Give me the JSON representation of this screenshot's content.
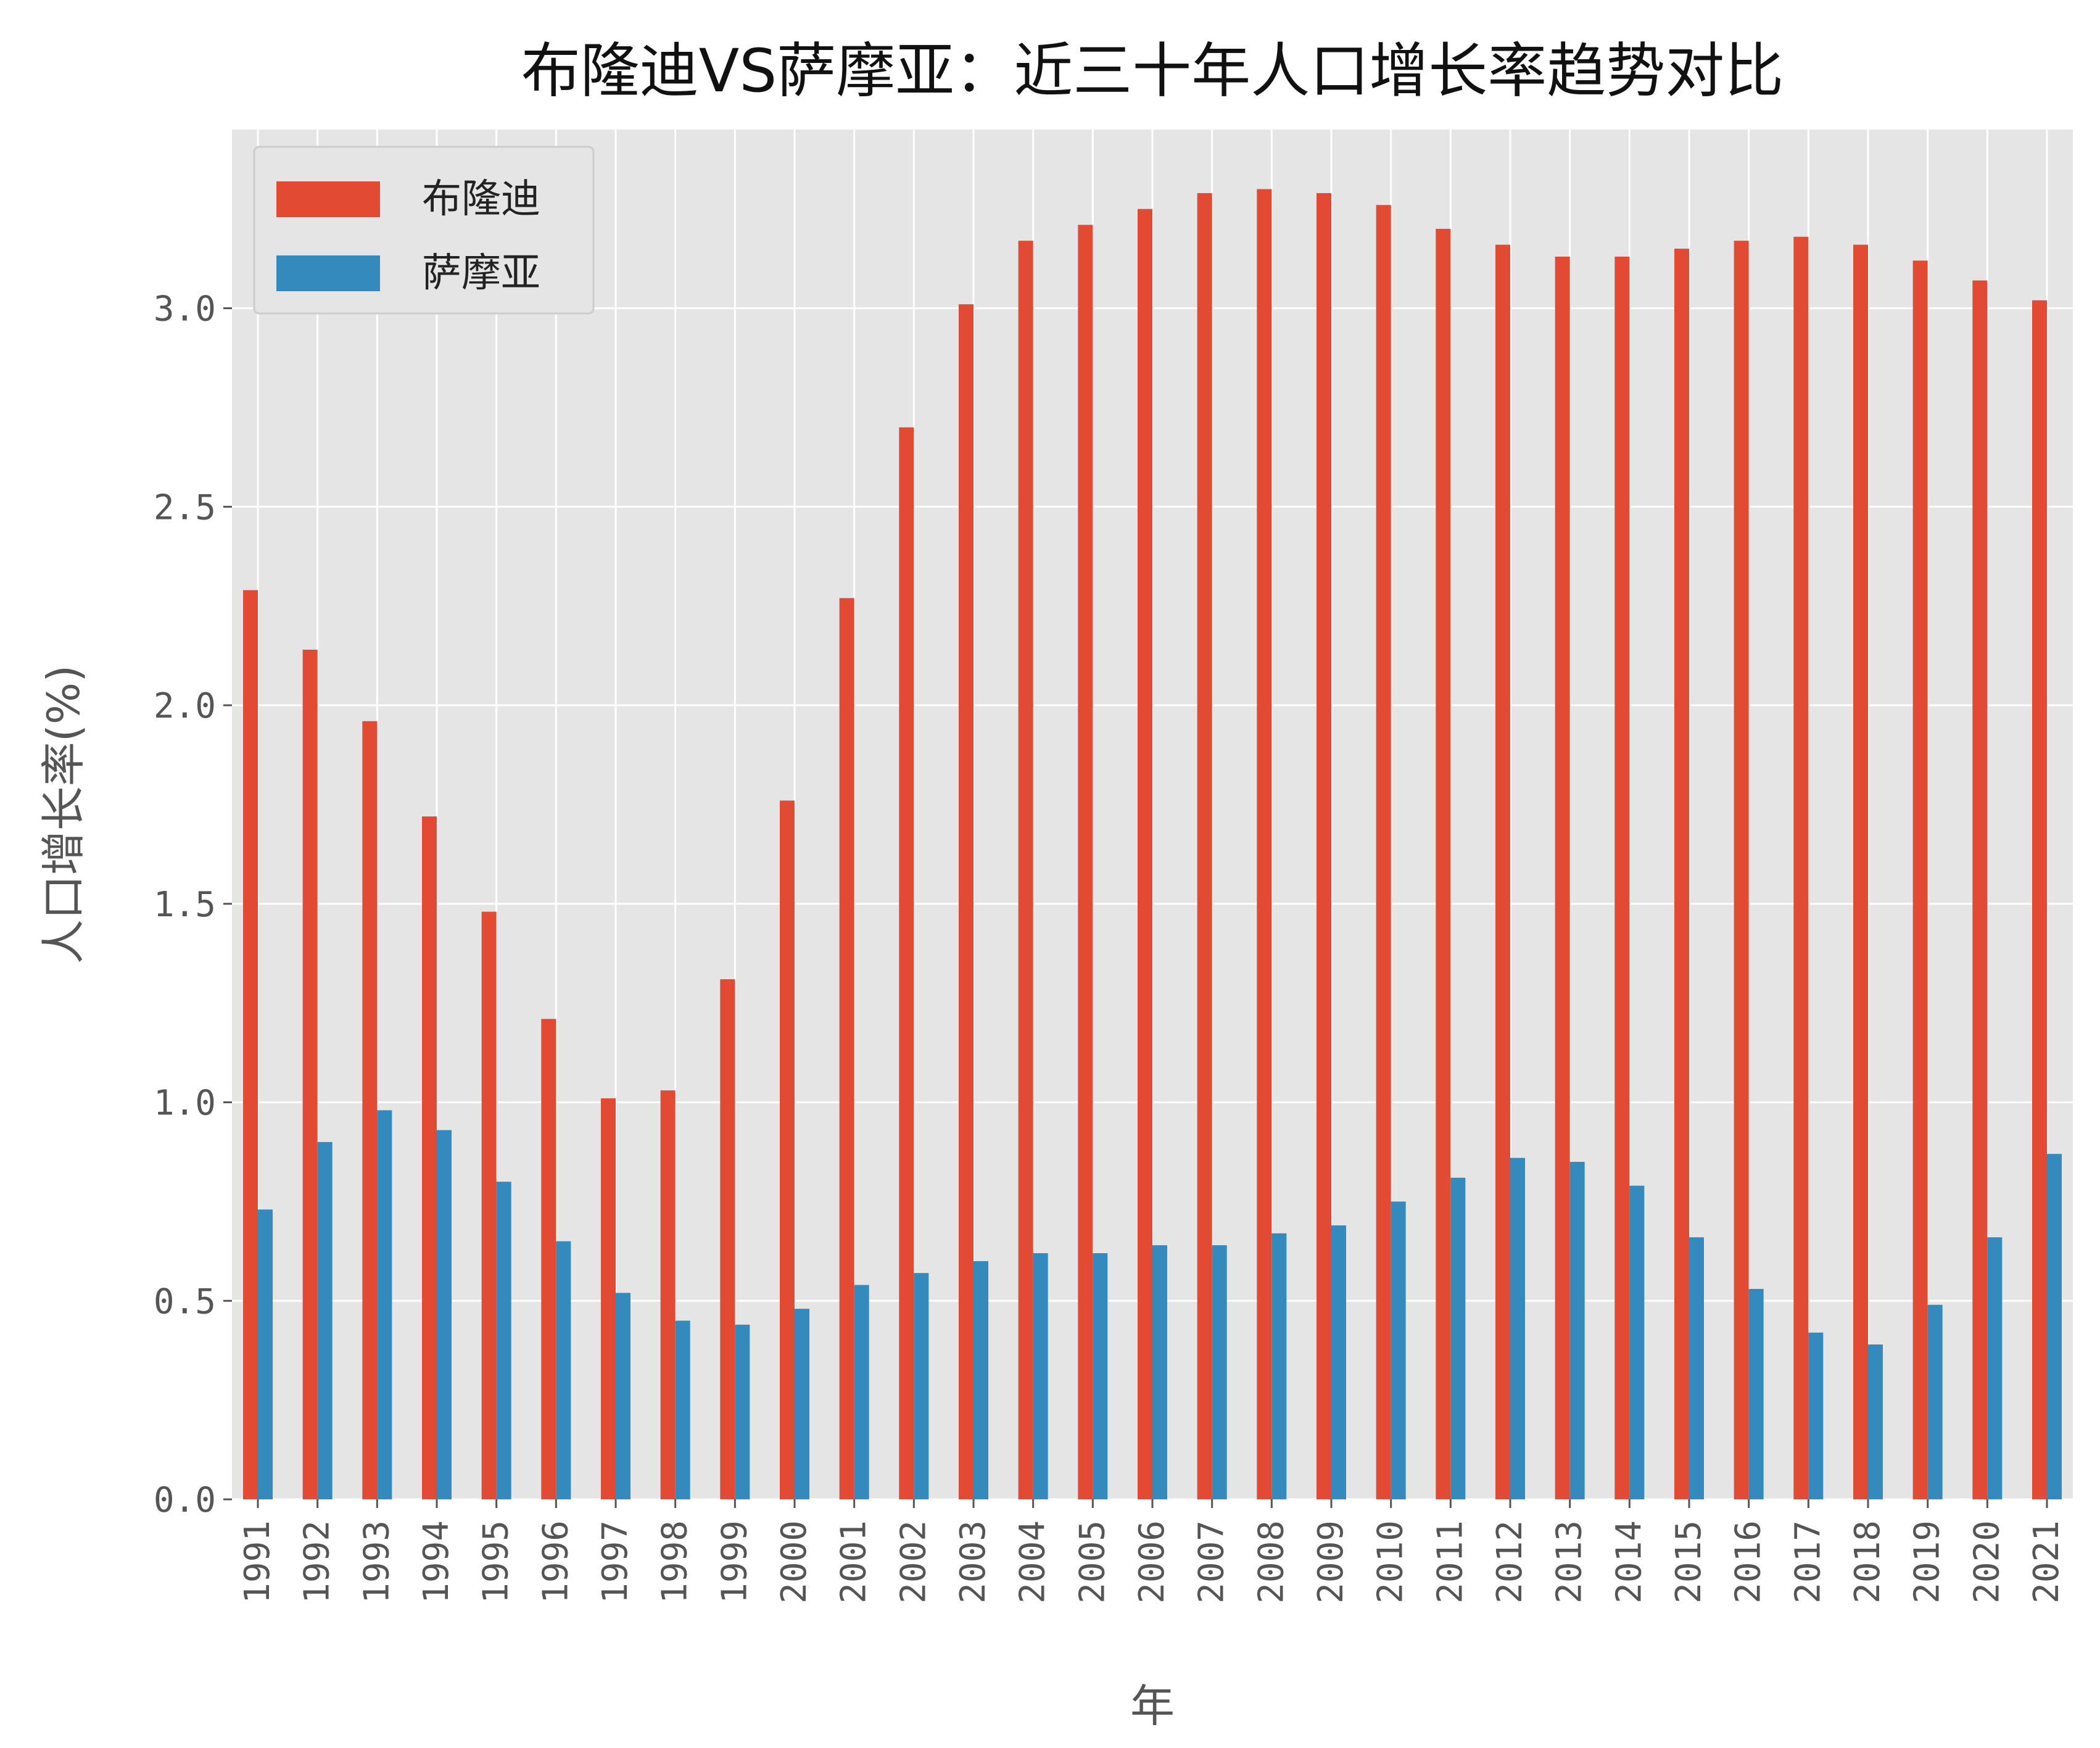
{
  "chart_data": {
    "type": "bar",
    "title": "布隆迪VS萨摩亚：近三十年人口增长率趋势对比",
    "xlabel": "年",
    "ylabel": "人口增长率(%)",
    "ylim": [
      0,
      3.45
    ],
    "yticks": [
      "0.0",
      "0.5",
      "1.0",
      "1.5",
      "2.0",
      "2.5",
      "3.0"
    ],
    "grid": true,
    "legend_position": "top-left",
    "categories": [
      "1991",
      "1992",
      "1993",
      "1994",
      "1995",
      "1996",
      "1997",
      "1998",
      "1999",
      "2000",
      "2001",
      "2002",
      "2003",
      "2004",
      "2005",
      "2006",
      "2007",
      "2008",
      "2009",
      "2010",
      "2011",
      "2012",
      "2013",
      "2014",
      "2015",
      "2016",
      "2017",
      "2018",
      "2019",
      "2020",
      "2021"
    ],
    "series": [
      {
        "name": "布隆迪",
        "color": "#E24A33",
        "values": [
          2.29,
          2.14,
          1.96,
          1.72,
          1.48,
          1.21,
          1.01,
          1.03,
          1.31,
          1.76,
          2.27,
          2.7,
          3.01,
          3.17,
          3.21,
          3.25,
          3.29,
          3.3,
          3.29,
          3.26,
          3.2,
          3.16,
          3.13,
          3.13,
          3.15,
          3.17,
          3.18,
          3.16,
          3.12,
          3.07,
          3.02
        ]
      },
      {
        "name": "萨摩亚",
        "color": "#348ABD",
        "values": [
          0.73,
          0.9,
          0.98,
          0.93,
          0.8,
          0.65,
          0.52,
          0.45,
          0.44,
          0.48,
          0.54,
          0.57,
          0.6,
          0.62,
          0.62,
          0.64,
          0.64,
          0.67,
          0.69,
          0.75,
          0.81,
          0.86,
          0.85,
          0.79,
          0.66,
          0.53,
          0.42,
          0.39,
          0.49,
          0.66,
          0.87
        ]
      }
    ]
  }
}
